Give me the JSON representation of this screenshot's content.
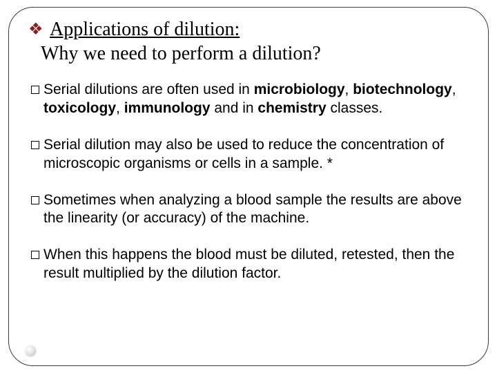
{
  "colors": {
    "diamond": "#8a1e1f",
    "text": "#000000",
    "border": "#3a3a3a",
    "background": "#ffffff"
  },
  "title": {
    "bullet_symbol": "❖",
    "line1_underlined": "Applications of dilution:",
    "line2": "Why we need to perform a dilution?"
  },
  "bullets": [
    {
      "lead": "Serial dilutions are often used in ",
      "bold1": "microbiology",
      "sep1": ", ",
      "bold2": "biotechnology",
      "sep2": ",",
      "cont_bold1": "toxicology",
      "cont_sep1": ", ",
      "cont_bold2": "immunology",
      "cont_mid": " and in ",
      "cont_bold3": "chemistry",
      "cont_tail": " classes."
    },
    {
      "lead": "Serial dilution may also be used to reduce the concentration of",
      "cont": "microscopic organisms or cells in a sample. *"
    },
    {
      "lead": "Sometimes when analyzing a blood sample the results are above",
      "cont": "the linearity (or accuracy) of the machine."
    },
    {
      "lead": "When this happens the blood must be diluted, retested, then the",
      "cont": "result multiplied by the dilution factor."
    }
  ]
}
